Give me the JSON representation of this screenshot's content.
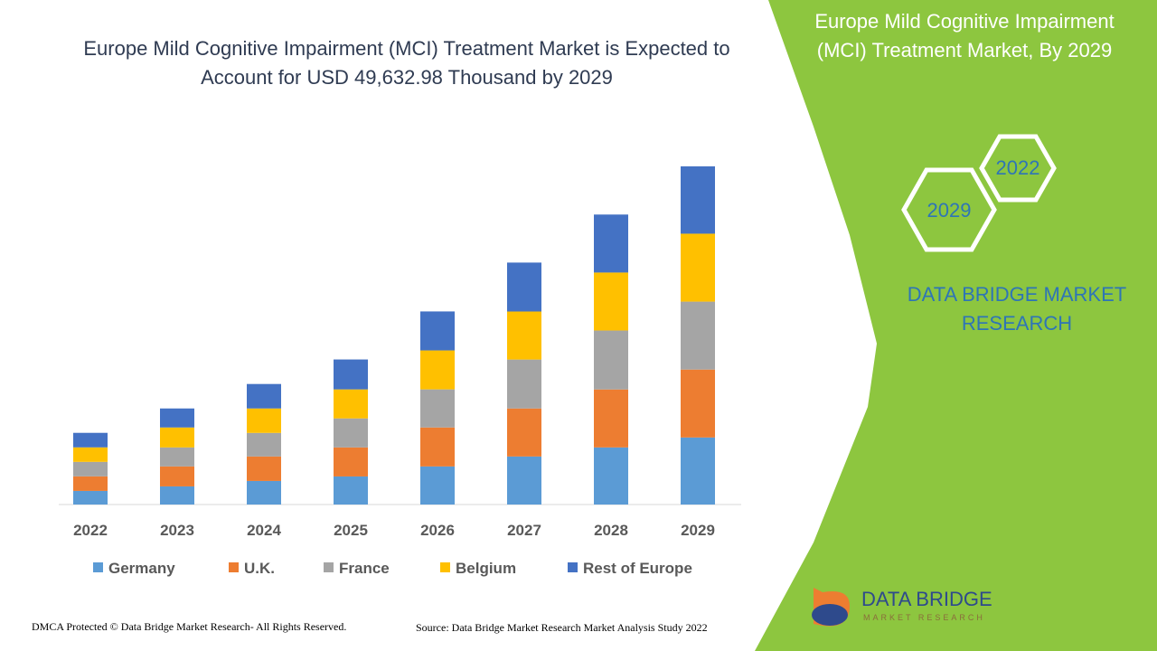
{
  "chart_data": {
    "type": "stacked_bar",
    "title": "Europe Mild Cognitive Impairment (MCI) Treatment Market is Expected to Account for USD 49,632.98 Thousand by 2029",
    "categories": [
      "2022",
      "2023",
      "2024",
      "2025",
      "2026",
      "2027",
      "2028",
      "2029"
    ],
    "series": [
      {
        "name": "Germany",
        "color": "#5b9bd5",
        "values": [
          2000,
          2660,
          3460,
          4120,
          5590,
          7050,
          8380,
          9840
        ]
      },
      {
        "name": "U.K.",
        "color": "#ed7d31",
        "values": [
          2130,
          2930,
          3590,
          4260,
          5720,
          7050,
          8510,
          9970
        ]
      },
      {
        "name": "France",
        "color": "#a5a5a5",
        "values": [
          2130,
          2790,
          3460,
          4260,
          5590,
          7180,
          8650,
          9970
        ]
      },
      {
        "name": "Belgium",
        "color": "#ffc000",
        "values": [
          2130,
          2930,
          3590,
          4260,
          5720,
          7050,
          8510,
          9970
        ]
      },
      {
        "name": "Rest of Europe",
        "color": "#4472c4",
        "values": [
          2130,
          2790,
          3590,
          4390,
          5720,
          7180,
          8510,
          9880
        ]
      }
    ]
  },
  "panel": {
    "title": "Europe Mild Cognitive Impairment (MCI) Treatment Market, By 2029",
    "hex_labels": [
      "2022",
      "2029"
    ],
    "brand": "DATA BRIDGE MARKET RESEARCH"
  },
  "logo": {
    "name": "DATA BRIDGE",
    "tagline": "MARKET RESEARCH"
  },
  "footer": {
    "left": "DMCA Protected © Data Bridge Market Research- All Rights Reserved.",
    "right": "Source: Data Bridge Market Research Market Analysis Study 2022"
  }
}
